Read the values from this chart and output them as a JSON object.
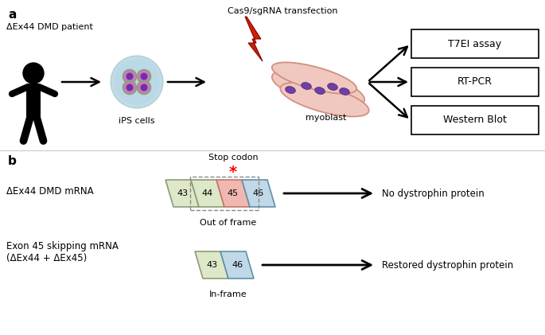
{
  "bg_color": "#ffffff",
  "panel_a_label": "a",
  "panel_b_label": "b",
  "cas9_text": "Cas9/sgRNA transfection",
  "ips_text": "iPS cells",
  "myoblast_text": "myoblast",
  "patient_text": "ΔEx44 DMD patient",
  "assay_labels": [
    "T7EI assay",
    "RT-PCR",
    "Western Blot"
  ],
  "dmd_mrna_label": "ΔEx44 DMD mRNA",
  "exon_skipping_label": "Exon 45 skipping mRNA\n(ΔEx44 + ΔEx45)",
  "stop_codon_text": "Stop codon",
  "out_of_frame_text": "Out of frame",
  "in_frame_text": "In-frame",
  "no_dystrophin_text": "No dystrophin protein",
  "restored_dystrophin_text": "Restored dystrophin protein",
  "exon43_color": "#dde8c8",
  "exon44_color": "#dde8c8",
  "exon45_color": "#f0b8b0",
  "exon46_color": "#c0d8e8",
  "exon43b_color": "#dde8c8",
  "exon46b_color": "#c0d8e8",
  "ips_outer_color": "#b8d8ea",
  "ips_cell_color": "#c878c8",
  "ips_nucleus_color": "#7030a0",
  "ips_ring_color": "#88b8c8",
  "myo_body_color": "#f0c8c0",
  "myo_edge_color": "#d09080",
  "myo_nucleus_color": "#7040a0",
  "bolt_color": "#cc2200",
  "arrow_color": "#111111"
}
